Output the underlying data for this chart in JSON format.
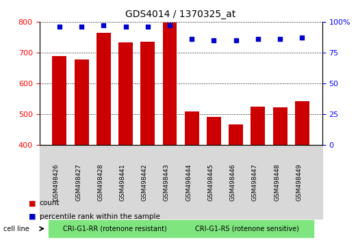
{
  "title": "GDS4014 / 1370325_at",
  "categories": [
    "GSM498426",
    "GSM498427",
    "GSM498428",
    "GSM498441",
    "GSM498442",
    "GSM498443",
    "GSM498444",
    "GSM498445",
    "GSM498446",
    "GSM498447",
    "GSM498448",
    "GSM498449"
  ],
  "bar_values": [
    688,
    678,
    765,
    733,
    735,
    797,
    509,
    492,
    468,
    526,
    522,
    543
  ],
  "percentile_values": [
    96,
    96,
    97,
    96,
    96,
    97,
    86,
    85,
    85,
    86,
    86,
    87
  ],
  "bar_color": "#cc0000",
  "dot_color": "#0000cc",
  "ylim_left": [
    400,
    800
  ],
  "ylim_right": [
    0,
    100
  ],
  "yticks_left": [
    400,
    500,
    600,
    700,
    800
  ],
  "yticks_right": [
    0,
    25,
    50,
    75,
    100
  ],
  "group1_label": "CRI-G1-RR (rotenone resistant)",
  "group2_label": "CRI-G1-RS (rotenone sensitive)",
  "group1_color": "#7fe57f",
  "group2_color": "#7fe57f",
  "cell_line_label": "cell line",
  "legend_count": "count",
  "legend_percentile": "percentile rank within the sample",
  "bg_color": "#ffffff",
  "plot_bg_color": "#ffffff",
  "tickarea_bg_color": "#d8d8d8"
}
